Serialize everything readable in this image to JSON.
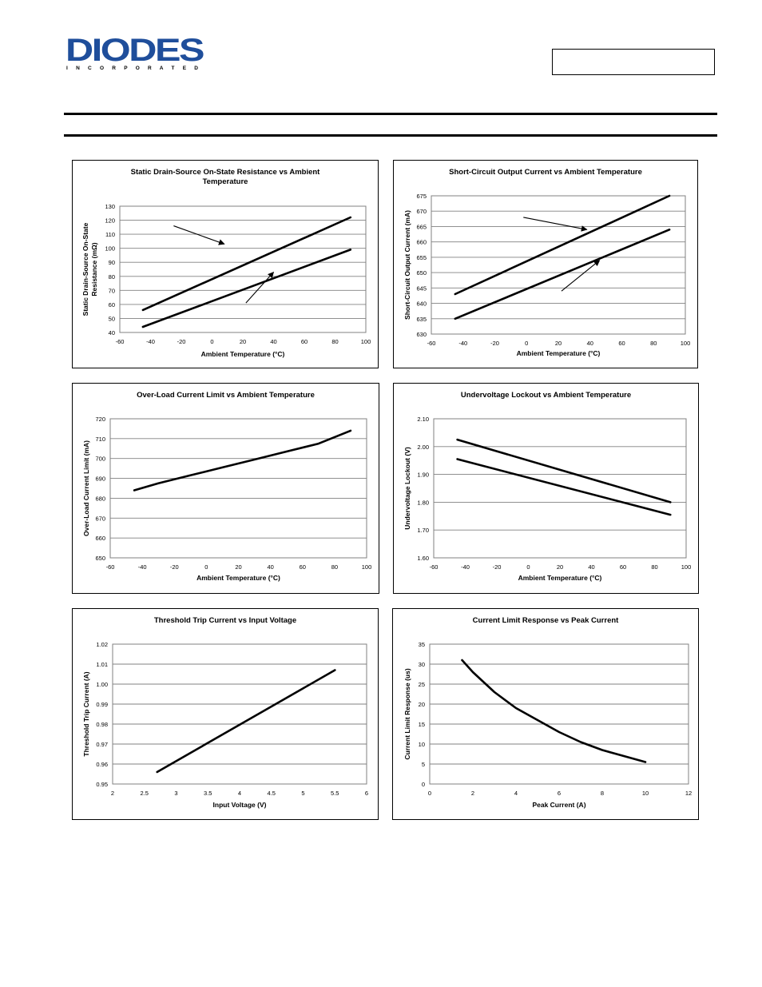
{
  "header": {
    "logo_text": "DIODES",
    "logo_subtext": "I N C O R P O R A T E D",
    "brand_color": "#1f4e9b"
  },
  "chart_data": [
    {
      "type": "line",
      "title": [
        "Static Drain-Source On-State Resistance vs Ambient",
        "Temperature"
      ],
      "xlabel": "Ambient Temperature (°C)",
      "ylabel": [
        "Static Drain-Source On-State",
        "Resistance (mΩ)"
      ],
      "xlim": [
        -60,
        100
      ],
      "ylim": [
        40,
        130
      ],
      "xticks": [
        -60,
        -40,
        -20,
        0,
        20,
        40,
        60,
        80,
        100
      ],
      "yticks": [
        40,
        50,
        60,
        70,
        80,
        90,
        100,
        110,
        120,
        130
      ],
      "ytick_decimals": 0,
      "grid": "horizontal",
      "series": [
        {
          "x": [
            -45,
            90
          ],
          "y": [
            56,
            122
          ]
        },
        {
          "x": [
            -45,
            90
          ],
          "y": [
            44,
            99
          ]
        }
      ],
      "arrows": [
        {
          "from": [
            -25,
            116
          ],
          "to": [
            8,
            103
          ]
        },
        {
          "from": [
            22,
            61
          ],
          "to": [
            40,
            83
          ]
        }
      ]
    },
    {
      "type": "line",
      "title": [
        "Short-Circuit Output Current vs Ambient Temperature"
      ],
      "xlabel": "Ambient Temperature (°C)",
      "ylabel": [
        "Short-Circuit Output Current (mA)"
      ],
      "xlim": [
        -60,
        100
      ],
      "ylim": [
        630,
        675
      ],
      "xticks": [
        -60,
        -40,
        -20,
        0,
        20,
        40,
        60,
        80,
        100
      ],
      "yticks": [
        630,
        635,
        640,
        645,
        650,
        655,
        660,
        665,
        670,
        675
      ],
      "ytick_decimals": 0,
      "grid": "horizontal",
      "series": [
        {
          "x": [
            -45,
            90
          ],
          "y": [
            643,
            675
          ]
        },
        {
          "x": [
            -45,
            90
          ],
          "y": [
            635,
            664
          ]
        }
      ],
      "arrows": [
        {
          "from": [
            -2,
            668
          ],
          "to": [
            38,
            664
          ]
        },
        {
          "from": [
            22,
            644
          ],
          "to": [
            46,
            654
          ]
        }
      ]
    },
    {
      "type": "line",
      "title": [
        "Over-Load Current Limit vs Ambient Temperature"
      ],
      "xlabel": "Ambient Temperature (°C)",
      "ylabel": [
        "Over-Load Current Limit (mA)"
      ],
      "xlim": [
        -60,
        100
      ],
      "ylim": [
        650,
        720
      ],
      "xticks": [
        -60,
        -40,
        -20,
        0,
        20,
        40,
        60,
        80,
        100
      ],
      "yticks": [
        650,
        660,
        670,
        680,
        690,
        700,
        710,
        720
      ],
      "ytick_decimals": 0,
      "grid": "horizontal",
      "series": [
        {
          "x": [
            -45,
            -30,
            -10,
            10,
            30,
            50,
            70,
            90
          ],
          "y": [
            684,
            687.5,
            691.5,
            695.5,
            699.5,
            703.5,
            707.5,
            714
          ]
        }
      ],
      "arrows": []
    },
    {
      "type": "line",
      "title": [
        "Undervoltage Lockout vs Ambient Temperature"
      ],
      "xlabel": "Ambient Temperature (°C)",
      "ylabel": [
        "Undervoltage Lockout (V)"
      ],
      "xlim": [
        -60,
        100
      ],
      "ylim": [
        1.6,
        2.1
      ],
      "xticks": [
        -60,
        -40,
        -20,
        0,
        20,
        40,
        60,
        80,
        100
      ],
      "yticks": [
        1.6,
        1.7,
        1.8,
        1.9,
        2.0,
        2.1
      ],
      "ytick_decimals": 2,
      "grid": "horizontal",
      "series": [
        {
          "x": [
            -45,
            90
          ],
          "y": [
            2.025,
            1.8
          ]
        },
        {
          "x": [
            -45,
            90
          ],
          "y": [
            1.955,
            1.755
          ]
        }
      ],
      "arrows": []
    },
    {
      "type": "line",
      "title": [
        "Threshold Trip Current vs Input Voltage"
      ],
      "xlabel": "Input Voltage (V)",
      "ylabel": [
        "Threshold Trip Current (A)"
      ],
      "xlim": [
        2,
        6
      ],
      "ylim": [
        0.95,
        1.02
      ],
      "xticks": [
        2,
        2.5,
        3,
        3.5,
        4,
        4.5,
        5,
        5.5,
        6
      ],
      "yticks": [
        0.95,
        0.96,
        0.97,
        0.98,
        0.99,
        1.0,
        1.01,
        1.02
      ],
      "ytick_decimals": 2,
      "grid": "horizontal",
      "series": [
        {
          "x": [
            2.7,
            5.5
          ],
          "y": [
            0.956,
            1.007
          ]
        }
      ],
      "arrows": []
    },
    {
      "type": "line",
      "title": [
        "Current Limit Response vs Peak Current"
      ],
      "xlabel": "Peak Current (A)",
      "ylabel": [
        "Current Limit Response (us)"
      ],
      "xlim": [
        0,
        12
      ],
      "ylim": [
        0,
        35
      ],
      "xticks": [
        0,
        2,
        4,
        6,
        8,
        10,
        12
      ],
      "yticks": [
        0,
        5,
        10,
        15,
        20,
        25,
        30,
        35
      ],
      "ytick_decimals": 0,
      "grid": "horizontal",
      "series": [
        {
          "x": [
            1.5,
            2,
            3,
            4,
            5,
            6,
            7,
            8,
            9,
            10
          ],
          "y": [
            31,
            28,
            23,
            19,
            16,
            13,
            10.5,
            8.5,
            7,
            5.5
          ]
        }
      ],
      "arrows": []
    }
  ]
}
